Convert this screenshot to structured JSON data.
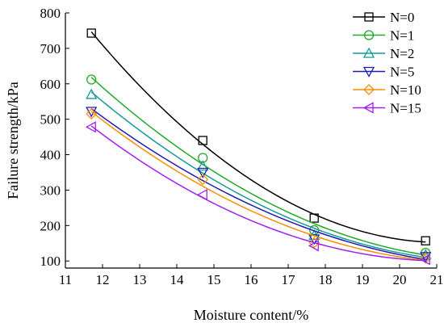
{
  "chart_data": {
    "type": "line",
    "xlabel": "Moisture content/%",
    "ylabel": "Failure strength/kPa",
    "xlim": [
      11,
      21
    ],
    "ylim": [
      80,
      800
    ],
    "xticks": [
      11,
      12,
      13,
      14,
      15,
      16,
      17,
      18,
      19,
      20,
      21
    ],
    "yticks": [
      100,
      200,
      300,
      400,
      500,
      600,
      700,
      800
    ],
    "x": [
      11.7,
      14.7,
      17.7,
      20.7
    ],
    "legend_position": "top-right",
    "grid": false,
    "series": [
      {
        "name": "N=0",
        "values": [
          743,
          440,
          221,
          157
        ],
        "color": "#000000",
        "marker": "square"
      },
      {
        "name": "N=1",
        "values": [
          612,
          391,
          187,
          123
        ],
        "color": "#22a82a",
        "marker": "circle"
      },
      {
        "name": "N=2",
        "values": [
          570,
          368,
          172,
          117
        ],
        "color": "#169a9a",
        "marker": "triangle-up"
      },
      {
        "name": "N=5",
        "values": [
          522,
          350,
          162,
          112
        ],
        "color": "#1c1cb4",
        "marker": "triangle-down"
      },
      {
        "name": "N=10",
        "values": [
          515,
          330,
          152,
          108
        ],
        "color": "#ff8c00",
        "marker": "diamond"
      },
      {
        "name": "N=15",
        "values": [
          478,
          287,
          143,
          104
        ],
        "color": "#a020f0",
        "marker": "triangle-left"
      }
    ]
  }
}
